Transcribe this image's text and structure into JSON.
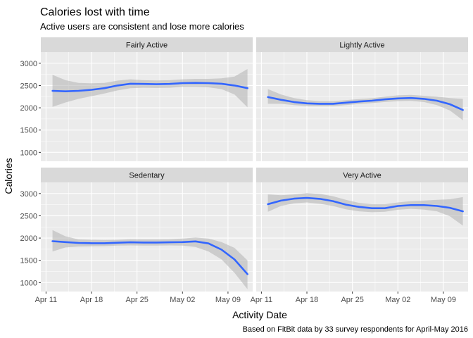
{
  "chart_data": {
    "type": "line",
    "title": "Calories lost with time",
    "subtitle": "Active users are consistent and lose more calories",
    "xlabel": "Activity Date",
    "ylabel": "Calories",
    "caption": "Based on FitBit data by 33 survey respondents for April-May 2016",
    "x_ticks": [
      "Apr 11",
      "Apr 18",
      "Apr 25",
      "May 02",
      "May 09"
    ],
    "x_tick_values": [
      11,
      18,
      25,
      32,
      39
    ],
    "xlim": [
      10.2,
      42.8
    ],
    "y_ticks": [
      1000,
      1500,
      2000,
      2500,
      3000
    ],
    "ylim": [
      800,
      3250
    ],
    "grid": true,
    "x": [
      12,
      14,
      16,
      18,
      20,
      22,
      24,
      26,
      28,
      30,
      32,
      34,
      36,
      38,
      40,
      42
    ],
    "panels": [
      {
        "label": "Fairly Active",
        "values": [
          2380,
          2370,
          2380,
          2405,
          2440,
          2500,
          2540,
          2535,
          2530,
          2535,
          2555,
          2560,
          2555,
          2540,
          2500,
          2440
        ],
        "lower": [
          2020,
          2120,
          2200,
          2260,
          2320,
          2390,
          2440,
          2450,
          2445,
          2450,
          2470,
          2470,
          2460,
          2420,
          2300,
          2010
        ],
        "upper": [
          2740,
          2620,
          2560,
          2550,
          2560,
          2610,
          2640,
          2620,
          2615,
          2620,
          2640,
          2650,
          2650,
          2660,
          2700,
          2870
        ]
      },
      {
        "label": "Lightly Active",
        "values": [
          2240,
          2180,
          2130,
          2100,
          2090,
          2090,
          2115,
          2140,
          2160,
          2190,
          2210,
          2220,
          2200,
          2160,
          2080,
          1950
        ],
        "lower": [
          2090,
          2090,
          2060,
          2040,
          2035,
          2035,
          2060,
          2085,
          2105,
          2130,
          2150,
          2155,
          2130,
          2060,
          1940,
          1720
        ],
        "upper": [
          2420,
          2300,
          2220,
          2170,
          2150,
          2150,
          2170,
          2195,
          2215,
          2250,
          2280,
          2290,
          2270,
          2250,
          2220,
          2200
        ]
      },
      {
        "label": "Sedentary",
        "values": [
          1930,
          1910,
          1890,
          1885,
          1885,
          1895,
          1905,
          1900,
          1900,
          1905,
          1910,
          1925,
          1880,
          1740,
          1520,
          1190
        ],
        "lower": [
          1700,
          1790,
          1810,
          1815,
          1820,
          1830,
          1835,
          1830,
          1830,
          1835,
          1830,
          1800,
          1700,
          1520,
          1220,
          850
        ],
        "upper": [
          2180,
          2040,
          1970,
          1960,
          1955,
          1960,
          1975,
          1970,
          1970,
          1975,
          1990,
          2010,
          1990,
          1910,
          1780,
          1500
        ]
      },
      {
        "label": "Very Active",
        "values": [
          2760,
          2840,
          2885,
          2900,
          2880,
          2830,
          2750,
          2700,
          2670,
          2670,
          2720,
          2740,
          2740,
          2720,
          2680,
          2600
        ],
        "lower": [
          2590,
          2720,
          2780,
          2800,
          2770,
          2720,
          2645,
          2600,
          2580,
          2590,
          2635,
          2655,
          2640,
          2600,
          2490,
          2280
        ],
        "upper": [
          2980,
          2960,
          2980,
          3010,
          2990,
          2940,
          2860,
          2790,
          2760,
          2760,
          2800,
          2830,
          2840,
          2860,
          2870,
          2920
        ]
      }
    ],
    "colors": {
      "line": "#3366FF",
      "ribbon": "#B3B3B3",
      "panel_bg": "#EBEBEB",
      "strip_bg": "#D9D9D9",
      "grid": "#FFFFFF",
      "text": "#1A1A1A",
      "tick_text": "#4D4D4D"
    }
  }
}
